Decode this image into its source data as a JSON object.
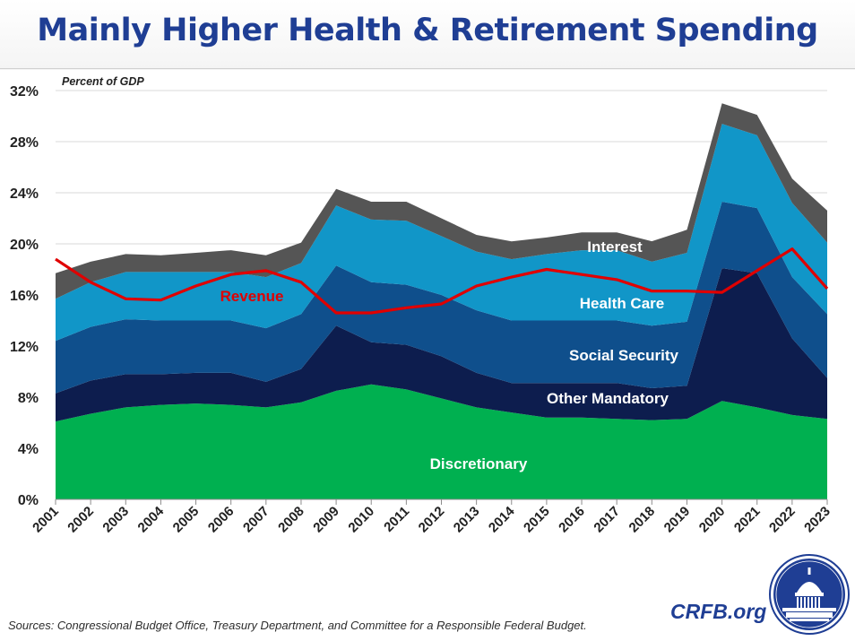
{
  "title": "Mainly Higher Health & Retirement Spending",
  "sources": "Sources: Congressional Budget Office, Treasury Department, and Committee for a Responsible Federal Budget.",
  "brand": "CRFB.org",
  "colors": {
    "title": "#1f3e94",
    "discretionary": "#00b050",
    "other_mandatory": "#0d1d4e",
    "social_security": "#0f4f8c",
    "health_care": "#1196c8",
    "interest": "#555555",
    "revenue": "#e00000",
    "revenue_label": "#e00000",
    "series_label": "#ffffff"
  },
  "chart_data": {
    "type": "area",
    "stacked": true,
    "unit_label": "Percent of GDP",
    "x": [
      2001,
      2002,
      2003,
      2004,
      2005,
      2006,
      2007,
      2008,
      2009,
      2010,
      2011,
      2012,
      2013,
      2014,
      2015,
      2016,
      2017,
      2018,
      2019,
      2020,
      2021,
      2022,
      2023
    ],
    "ylim": [
      0,
      32
    ],
    "yticks": [
      "0%",
      "4%",
      "8%",
      "12%",
      "16%",
      "20%",
      "24%",
      "28%",
      "32%"
    ],
    "ytick_values": [
      0,
      4,
      8,
      12,
      16,
      20,
      24,
      28,
      32
    ],
    "grid": true,
    "legend": "none (series labelled inside areas)",
    "series": [
      {
        "name": "Discretionary",
        "color_key": "discretionary",
        "values": [
          6.1,
          6.7,
          7.2,
          7.4,
          7.5,
          7.4,
          7.2,
          7.6,
          8.5,
          9.0,
          8.6,
          7.9,
          7.2,
          6.8,
          6.4,
          6.4,
          6.3,
          6.2,
          6.3,
          7.7,
          7.2,
          6.6,
          6.3
        ]
      },
      {
        "name": "Other Mandatory",
        "color_key": "other_mandatory",
        "values": [
          2.2,
          2.6,
          2.6,
          2.4,
          2.4,
          2.5,
          2.0,
          2.6,
          5.1,
          3.3,
          3.5,
          3.3,
          2.7,
          2.3,
          2.7,
          2.7,
          2.8,
          2.5,
          2.6,
          10.4,
          10.5,
          6.0,
          3.2
        ]
      },
      {
        "name": "Social Security",
        "color_key": "social_security",
        "values": [
          4.1,
          4.2,
          4.3,
          4.2,
          4.1,
          4.1,
          4.2,
          4.3,
          4.7,
          4.7,
          4.7,
          4.8,
          4.9,
          4.9,
          4.9,
          4.9,
          4.9,
          4.9,
          5.0,
          5.2,
          5.1,
          4.8,
          5.0
        ]
      },
      {
        "name": "Health Care",
        "color_key": "health_care",
        "values": [
          3.3,
          3.5,
          3.7,
          3.8,
          3.8,
          3.8,
          4.0,
          4.0,
          4.7,
          4.9,
          5.0,
          4.6,
          4.6,
          4.8,
          5.2,
          5.5,
          5.5,
          5.0,
          5.4,
          6.1,
          5.7,
          5.8,
          5.6
        ]
      },
      {
        "name": "Interest",
        "color_key": "interest",
        "values": [
          2.0,
          1.6,
          1.4,
          1.3,
          1.5,
          1.7,
          1.7,
          1.6,
          1.3,
          1.4,
          1.5,
          1.4,
          1.3,
          1.4,
          1.3,
          1.4,
          1.4,
          1.6,
          1.8,
          1.6,
          1.6,
          1.9,
          2.5
        ]
      }
    ],
    "lines": [
      {
        "name": "Revenue",
        "color_key": "revenue",
        "values": [
          18.8,
          17.0,
          15.7,
          15.6,
          16.7,
          17.6,
          17.9,
          17.0,
          14.6,
          14.6,
          15.0,
          15.3,
          16.7,
          17.4,
          18.0,
          17.6,
          17.2,
          16.3,
          16.3,
          16.2,
          17.9,
          19.6,
          16.5
        ]
      }
    ],
    "annotations": [
      {
        "text": "Interest",
        "series": "Interest"
      },
      {
        "text": "Health Care",
        "series": "Health Care"
      },
      {
        "text": "Social Security",
        "series": "Social Security"
      },
      {
        "text": "Other Mandatory",
        "series": "Other Mandatory"
      },
      {
        "text": "Discretionary",
        "series": "Discretionary"
      },
      {
        "text": "Revenue",
        "series": "Revenue"
      }
    ]
  }
}
